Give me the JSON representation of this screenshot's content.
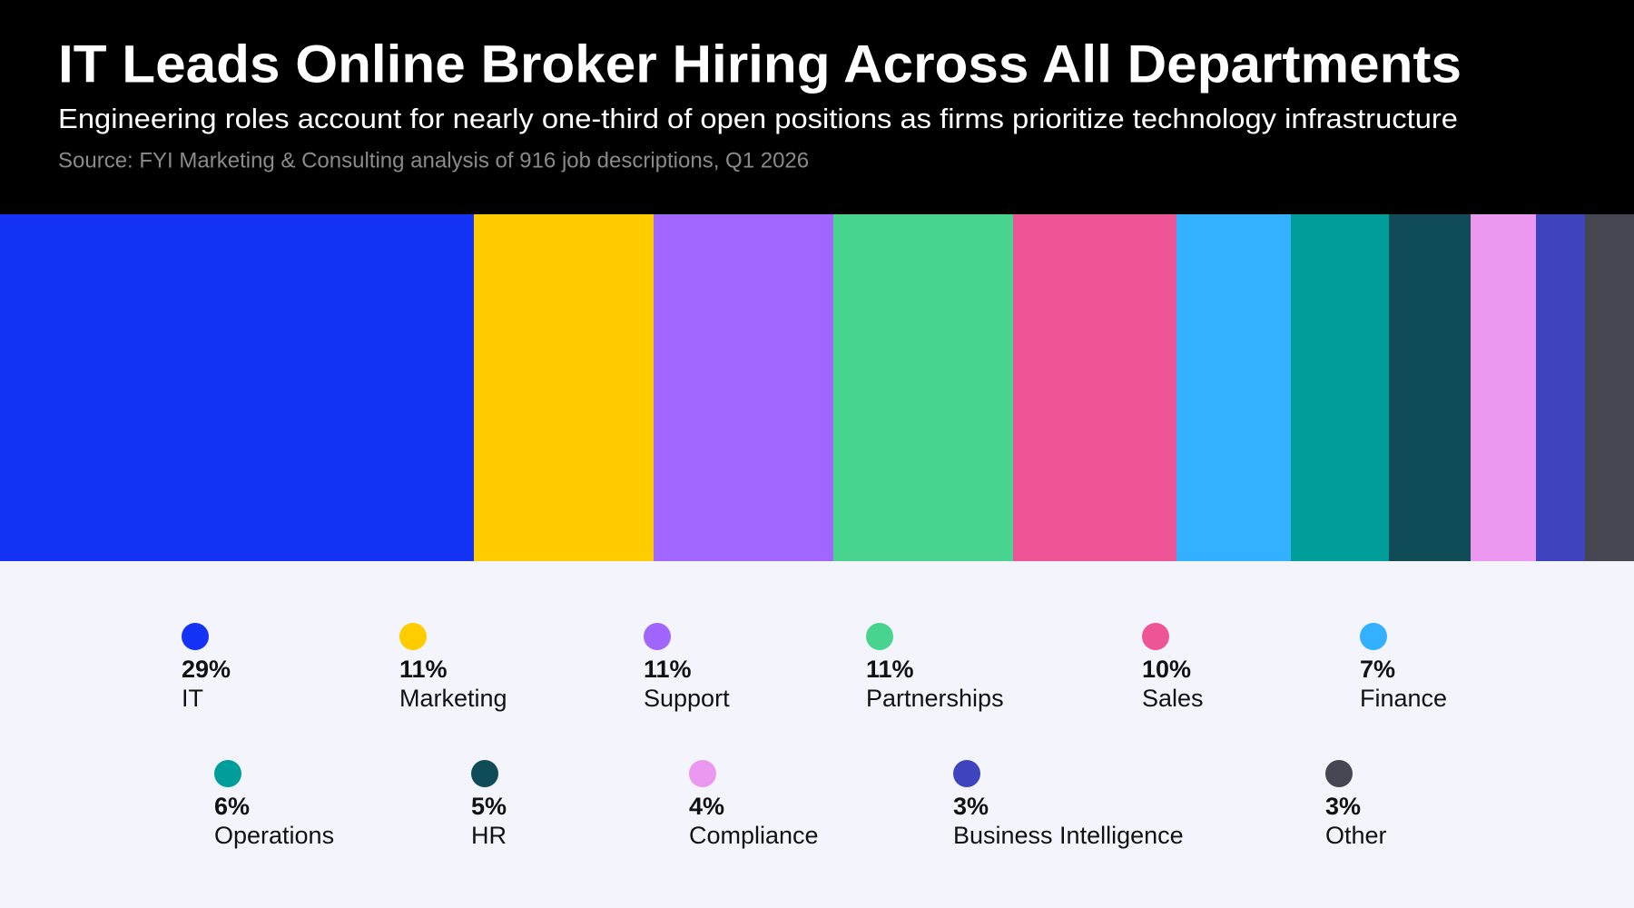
{
  "chart_data": {
    "type": "bar",
    "title": "IT Leads Online Broker Hiring Across All Departments",
    "subtitle": "Engineering roles account for nearly one-third of open positions as firms prioritize technology infrastructure",
    "source": "Source: FYI Marketing & Consulting analysis of 916 job descriptions, Q1 2026",
    "categories": [
      "IT",
      "Marketing",
      "Support",
      "Partnerships",
      "Sales",
      "Finance",
      "Operations",
      "HR",
      "Compliance",
      "Business Intelligence",
      "Other"
    ],
    "values": [
      29,
      11,
      11,
      11,
      10,
      7,
      6,
      5,
      4,
      3,
      3
    ],
    "value_labels": [
      "29%",
      "11%",
      "11%",
      "11%",
      "10%",
      "7%",
      "6%",
      "5%",
      "4%",
      "3%",
      "3%"
    ],
    "colors": [
      "#1433f5",
      "#ffcc00",
      "#a066ff",
      "#48d48f",
      "#ee5596",
      "#33b0ff",
      "#009e9a",
      "#0f4c57",
      "#ec98f0",
      "#3d44be",
      "#454652"
    ]
  }
}
